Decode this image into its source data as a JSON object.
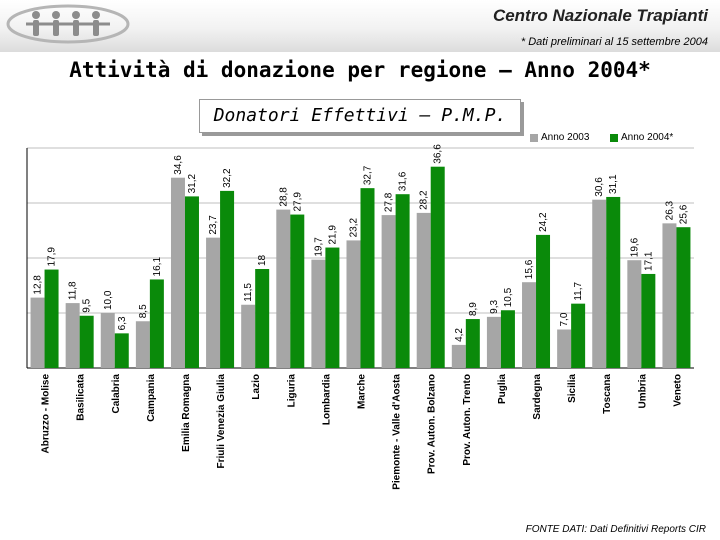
{
  "header": {
    "org_name": "Centro Nazionale Trapianti",
    "preliminary_note": "* Dati preliminari al 15 settembre 2004"
  },
  "main_title": "Attività di donazione per regione – Anno 2004*",
  "source_note": "FONTE DATI: Dati Definitivi Reports CIR",
  "colors": {
    "series_2003": "#a6a6a6",
    "series_2004": "#0a8a0a",
    "grid": "#bfbfbf"
  },
  "chart_data": {
    "type": "bar",
    "title": "Donatori Effettivi – P.M.P.",
    "ylim": [
      0,
      40
    ],
    "grid": true,
    "legend_position": "top-right",
    "categories": [
      "Abruzzo - Molise",
      "Basilicata",
      "Calabria",
      "Campania",
      "Emilia Romagna",
      "Friuli Venezia Giulia",
      "Lazio",
      "Liguria",
      "Lombardia",
      "Marche",
      "Piemonte - Valle d'Aosta",
      "Prov. Auton. Bolzano",
      "Prov. Auton. Trento",
      "Puglia",
      "Sardegna",
      "Sicilia",
      "Toscana",
      "Umbria",
      "Veneto"
    ],
    "series": [
      {
        "name": "Anno 2003",
        "values": [
          12.8,
          11.8,
          10.0,
          8.5,
          34.6,
          23.7,
          11.5,
          28.8,
          19.7,
          23.2,
          27.8,
          28.2,
          4.2,
          9.3,
          15.6,
          7.0,
          30.6,
          19.6,
          26.3
        ],
        "labels": [
          "12,8",
          "11,8",
          "10,0",
          "8,5",
          "34,6",
          "23,7",
          "11,5",
          "28,8",
          "19,7",
          "23,2",
          "27,8",
          "28,2",
          "4,2",
          "9,3",
          "15,6",
          "7,0",
          "30,6",
          "19,6",
          "26,3"
        ]
      },
      {
        "name": "Anno 2004*",
        "values": [
          17.9,
          9.5,
          6.3,
          16.1,
          31.2,
          32.2,
          18.0,
          27.9,
          21.9,
          32.7,
          31.6,
          36.6,
          8.9,
          10.5,
          24.2,
          11.7,
          31.1,
          17.1,
          25.6
        ],
        "labels": [
          "17,9",
          "9,5",
          "6,3",
          "16,1",
          "31,2",
          "32,2",
          "18",
          "27,9",
          "21,9",
          "32,7",
          "31,6",
          "36,6",
          "8,9",
          "10,5",
          "24,2",
          "11,7",
          "31,1",
          "17,1",
          "25,6"
        ]
      }
    ]
  }
}
